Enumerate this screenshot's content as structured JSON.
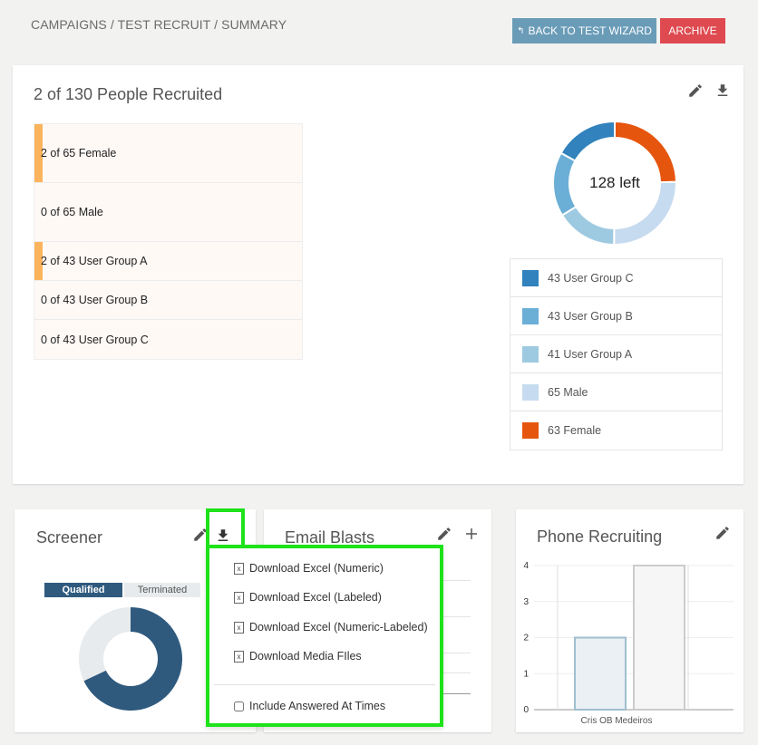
{
  "header": {
    "breadcrumb": "CAMPAIGNS / TEST RECRUIT / SUMMARY",
    "back_button": "BACK TO TEST WIZARD",
    "archive_button": "ARCHIVE"
  },
  "recruit": {
    "title": "2 of 130 People Recruited",
    "quotas": [
      {
        "label": "2 of 65 Female",
        "progress": 0.03
      },
      {
        "label": "0 of 65 Male",
        "progress": 0
      },
      {
        "label": "2 of 43 User Group A",
        "progress": 0.03
      },
      {
        "label": "0 of 43 User Group B",
        "progress": 0
      },
      {
        "label": "0 of 43 User Group C",
        "progress": 0
      }
    ],
    "donut_center": "128 left",
    "donut": [
      {
        "label": "63 Female",
        "value": 63,
        "color": "#e6550d"
      },
      {
        "label": "65 Male",
        "value": 65,
        "color": "#c6dbef"
      },
      {
        "label": "41 User Group A",
        "value": 41,
        "color": "#9ecae1"
      },
      {
        "label": "43 User Group B",
        "value": 43,
        "color": "#6baed6"
      },
      {
        "label": "43 User Group C",
        "value": 43,
        "color": "#3182bd"
      }
    ],
    "legend": [
      {
        "label": "43 User Group C",
        "color": "#3182bd"
      },
      {
        "label": "43 User Group B",
        "color": "#6baed6"
      },
      {
        "label": "41 User Group A",
        "color": "#9ecae1"
      },
      {
        "label": "65 Male",
        "color": "#c6dbef"
      },
      {
        "label": "63 Female",
        "color": "#e6550d"
      }
    ]
  },
  "screener": {
    "title": "Screener",
    "tag_qualified": "Qualified",
    "tag_terminated": "Terminated",
    "qualified_share": 0.68,
    "colors": {
      "qualified": "#2f5a7e",
      "terminated": "#e8ebed"
    }
  },
  "download_menu": {
    "items": [
      "Download Excel (Numeric)",
      "Download Excel (Labeled)",
      "Download Excel (Numeric-Labeled)",
      "Download Media FIles"
    ],
    "checkbox_label": "Include Answered At Times"
  },
  "email": {
    "title": "Email Blasts"
  },
  "phone": {
    "title": "Phone Recruiting",
    "chart_data": {
      "type": "bar",
      "categories": [
        "Cris OB Medeiros"
      ],
      "series": [
        {
          "values": [
            2
          ]
        },
        {
          "values": [
            4
          ]
        }
      ],
      "ylim": [
        0,
        4
      ],
      "yticks": [
        "0",
        "1",
        "2",
        "3",
        "4"
      ]
    }
  }
}
